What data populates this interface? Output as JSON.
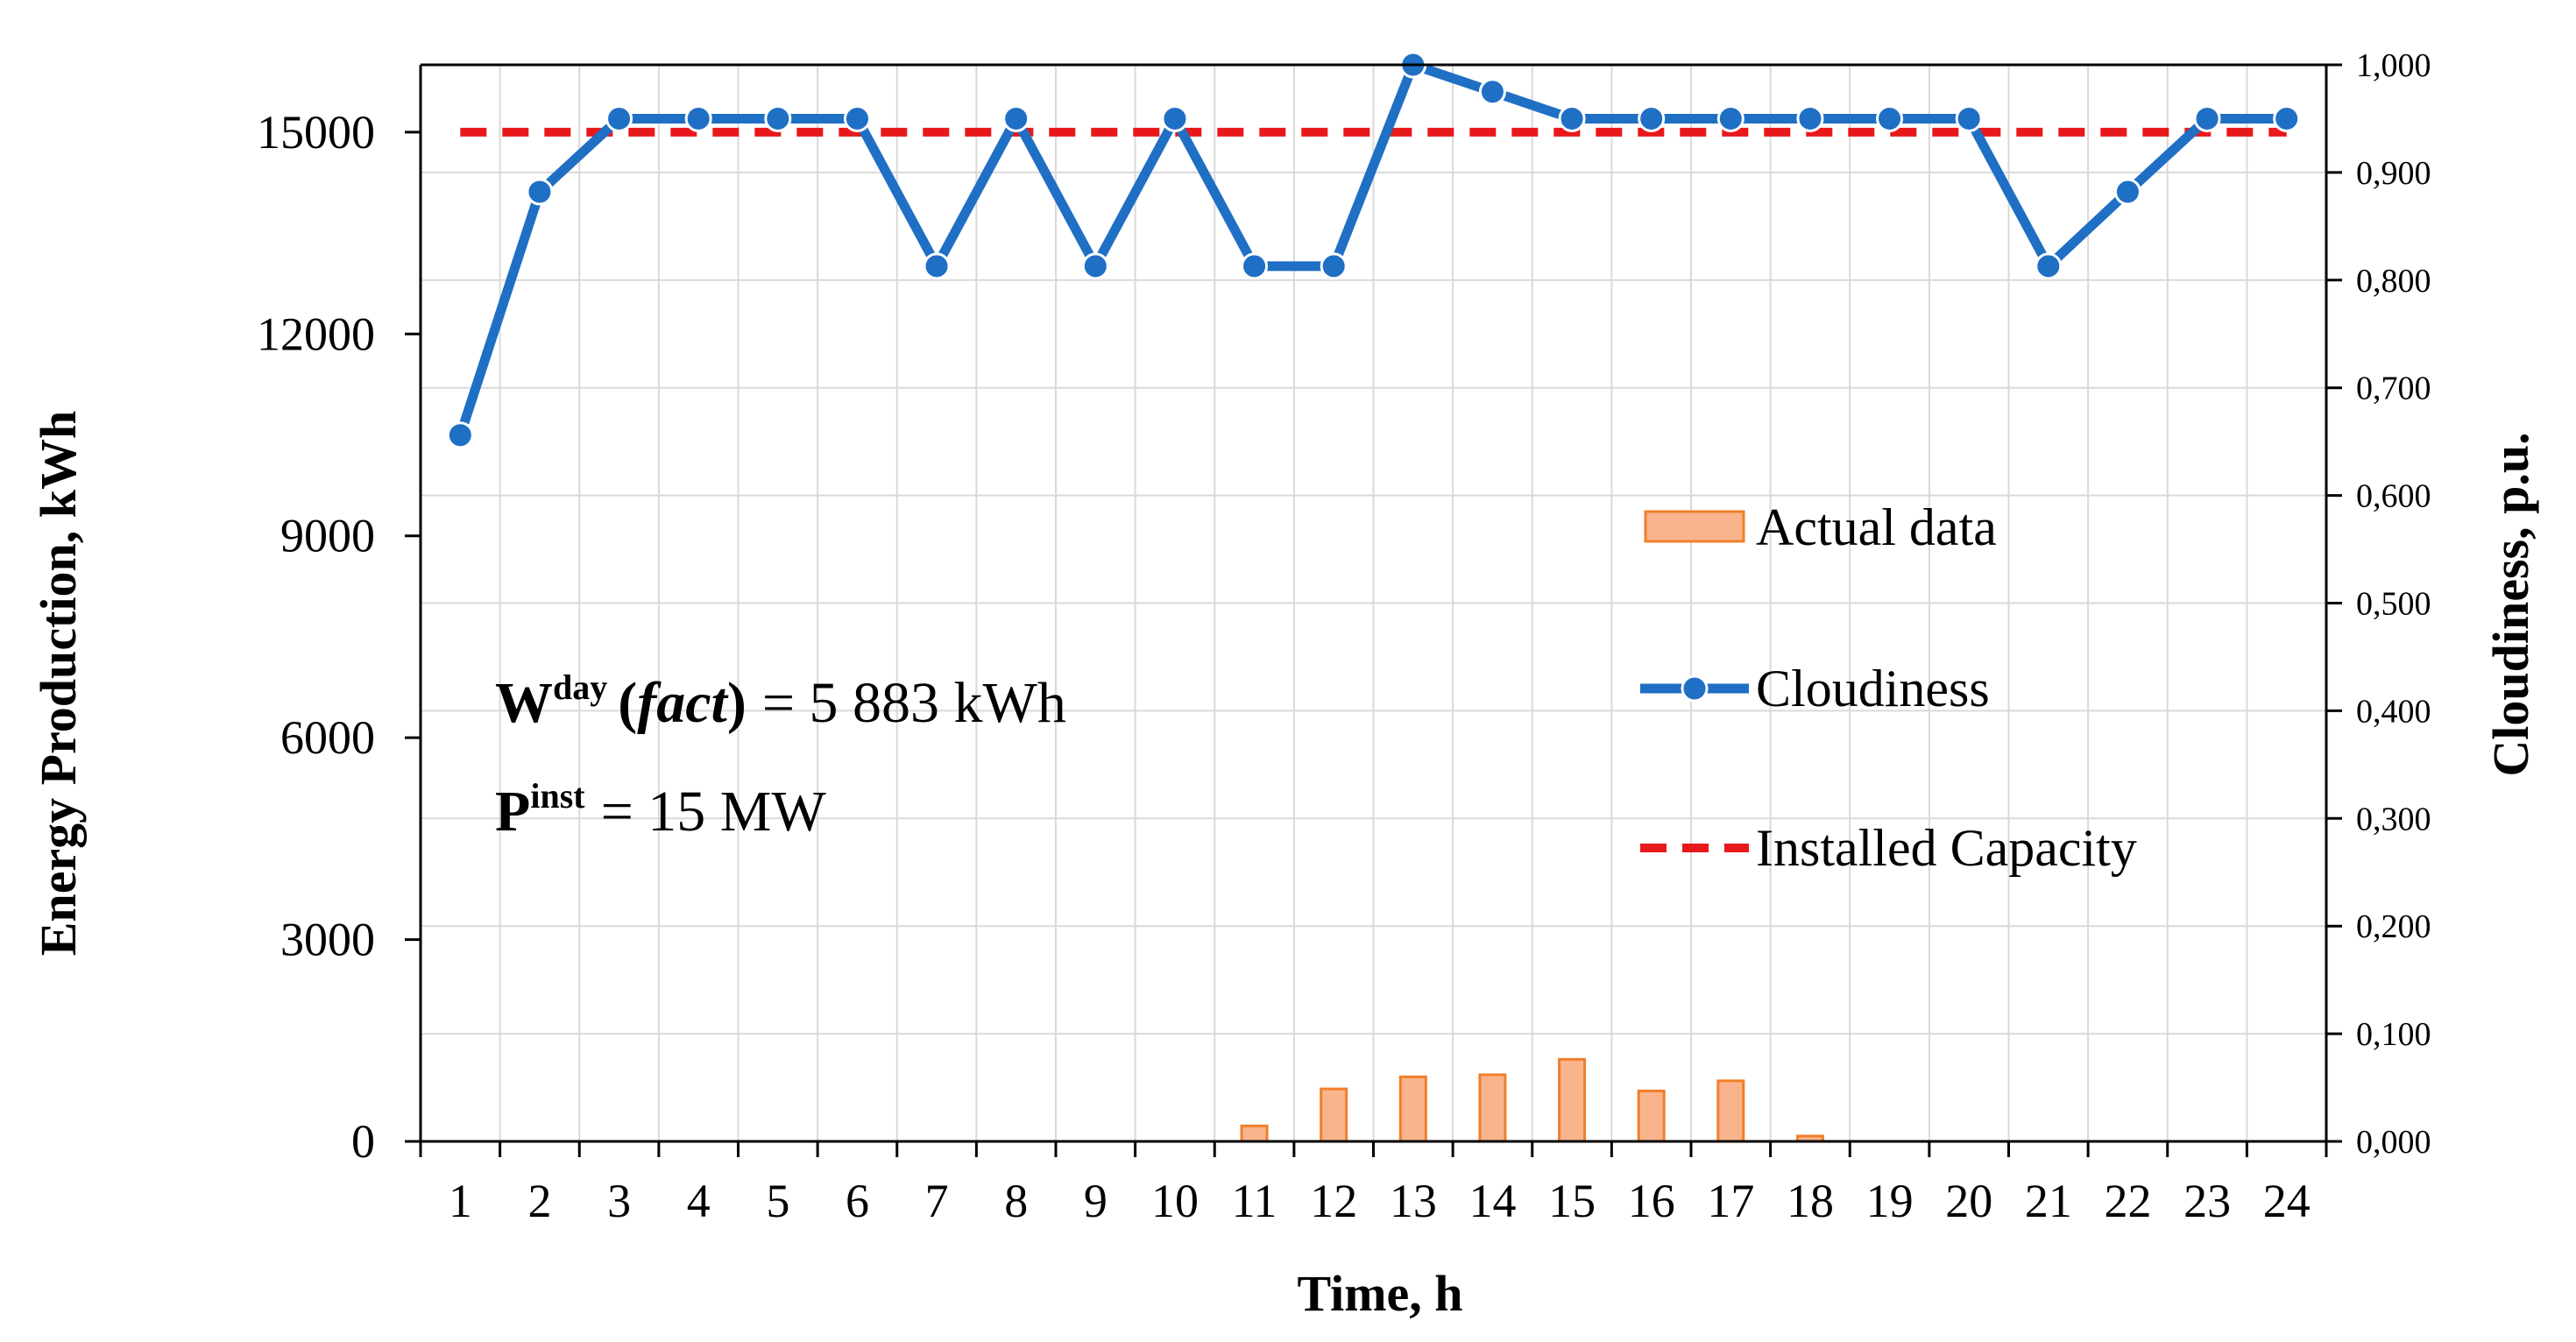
{
  "chart_data": {
    "type": "bar+line",
    "x": [
      "1",
      "2",
      "3",
      "4",
      "5",
      "6",
      "7",
      "8",
      "9",
      "10",
      "11",
      "12",
      "13",
      "14",
      "15",
      "16",
      "17",
      "18",
      "19",
      "20",
      "21",
      "22",
      "23",
      "24"
    ],
    "xlabel": "Time, h",
    "ylabel_left": "Energy Production, kWh",
    "ylabel_right": "Cloudiness, p.u.",
    "ylim_left": [
      0,
      16000
    ],
    "ylim_right": [
      0,
      1
    ],
    "yticks_left": [
      "0",
      "3000",
      "6000",
      "9000",
      "12000",
      "15000"
    ],
    "yticks_right": [
      "0,000",
      "0,100",
      "0,200",
      "0,300",
      "0,400",
      "0,500",
      "0,600",
      "0,700",
      "0,800",
      "0,900",
      "1,000"
    ],
    "grid": true,
    "series": [
      {
        "name": "Actual data",
        "kind": "bar",
        "axis": "left",
        "color": "#f9b48d",
        "edge_color": "#f07f2a",
        "values": [
          0,
          0,
          0,
          0,
          0,
          0,
          0,
          0,
          0,
          0,
          230,
          780,
          960,
          990,
          1220,
          750,
          900,
          80,
          0,
          0,
          0,
          0,
          0,
          0
        ]
      },
      {
        "name": "Cloudiness",
        "kind": "line",
        "axis": "right",
        "color": "#1f6fc5",
        "values": [
          0.656,
          0.882,
          0.95,
          0.95,
          0.95,
          0.95,
          0.813,
          0.95,
          0.813,
          0.95,
          0.813,
          0.813,
          1.0,
          0.975,
          0.95,
          0.95,
          0.95,
          0.95,
          0.95,
          0.95,
          0.813,
          0.882,
          0.95,
          0.95
        ]
      },
      {
        "name": "Installed Capacity",
        "kind": "dashed-line",
        "axis": "left",
        "color": "#e8191b",
        "value": 15000
      }
    ],
    "legend_position": "middle-right",
    "annotations": {
      "w_base": "W",
      "w_sup": "day",
      "w_open": "(",
      "w_fact": "fact",
      "w_close": ")",
      "w_value": "= 5 883 kWh",
      "p_base": "P",
      "p_sup": "inst",
      "p_value": "= 15 MW"
    }
  }
}
